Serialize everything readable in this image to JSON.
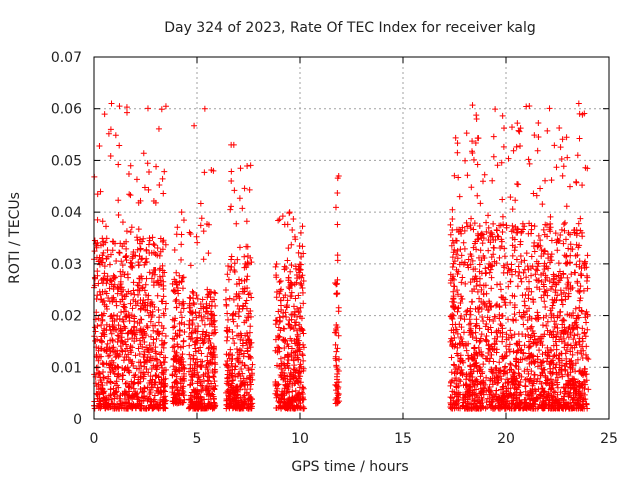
{
  "chart_data": {
    "type": "scatter",
    "title": "Day 324 of 2023, Rate Of TEC Index for receiver kalg",
    "xlabel": "GPS time / hours",
    "ylabel": "ROTI / TECUs",
    "xlim": [
      0,
      25
    ],
    "ylim": [
      0,
      0.07
    ],
    "xticks": [
      "0",
      "5",
      "10",
      "15",
      "20",
      "25"
    ],
    "yticks": [
      "0",
      "0.01",
      "0.02",
      "0.03",
      "0.04",
      "0.05",
      "0.06",
      "0.07"
    ],
    "grid": true,
    "marker": "+",
    "color": "#ff0000",
    "clusters": [
      {
        "x_range": [
          0.0,
          3.5
        ],
        "y_range": [
          0.002,
          0.035
        ],
        "peak": 0.061
      },
      {
        "x_range": [
          3.8,
          4.4
        ],
        "y_range": [
          0.003,
          0.028
        ],
        "peak": 0.04
      },
      {
        "x_range": [
          4.6,
          5.9
        ],
        "y_range": [
          0.002,
          0.025
        ],
        "peak": 0.06
      },
      {
        "x_range": [
          6.4,
          7.7
        ],
        "y_range": [
          0.002,
          0.032
        ],
        "peak": 0.053
      },
      {
        "x_range": [
          8.8,
          10.2
        ],
        "y_range": [
          0.002,
          0.03
        ],
        "peak": 0.04
      },
      {
        "x_range": [
          11.7,
          11.9
        ],
        "y_range": [
          0.003,
          0.027
        ],
        "peak": 0.047
      },
      {
        "x_range": [
          17.3,
          24.0
        ],
        "y_range": [
          0.002,
          0.038
        ],
        "peak": 0.061
      }
    ]
  }
}
